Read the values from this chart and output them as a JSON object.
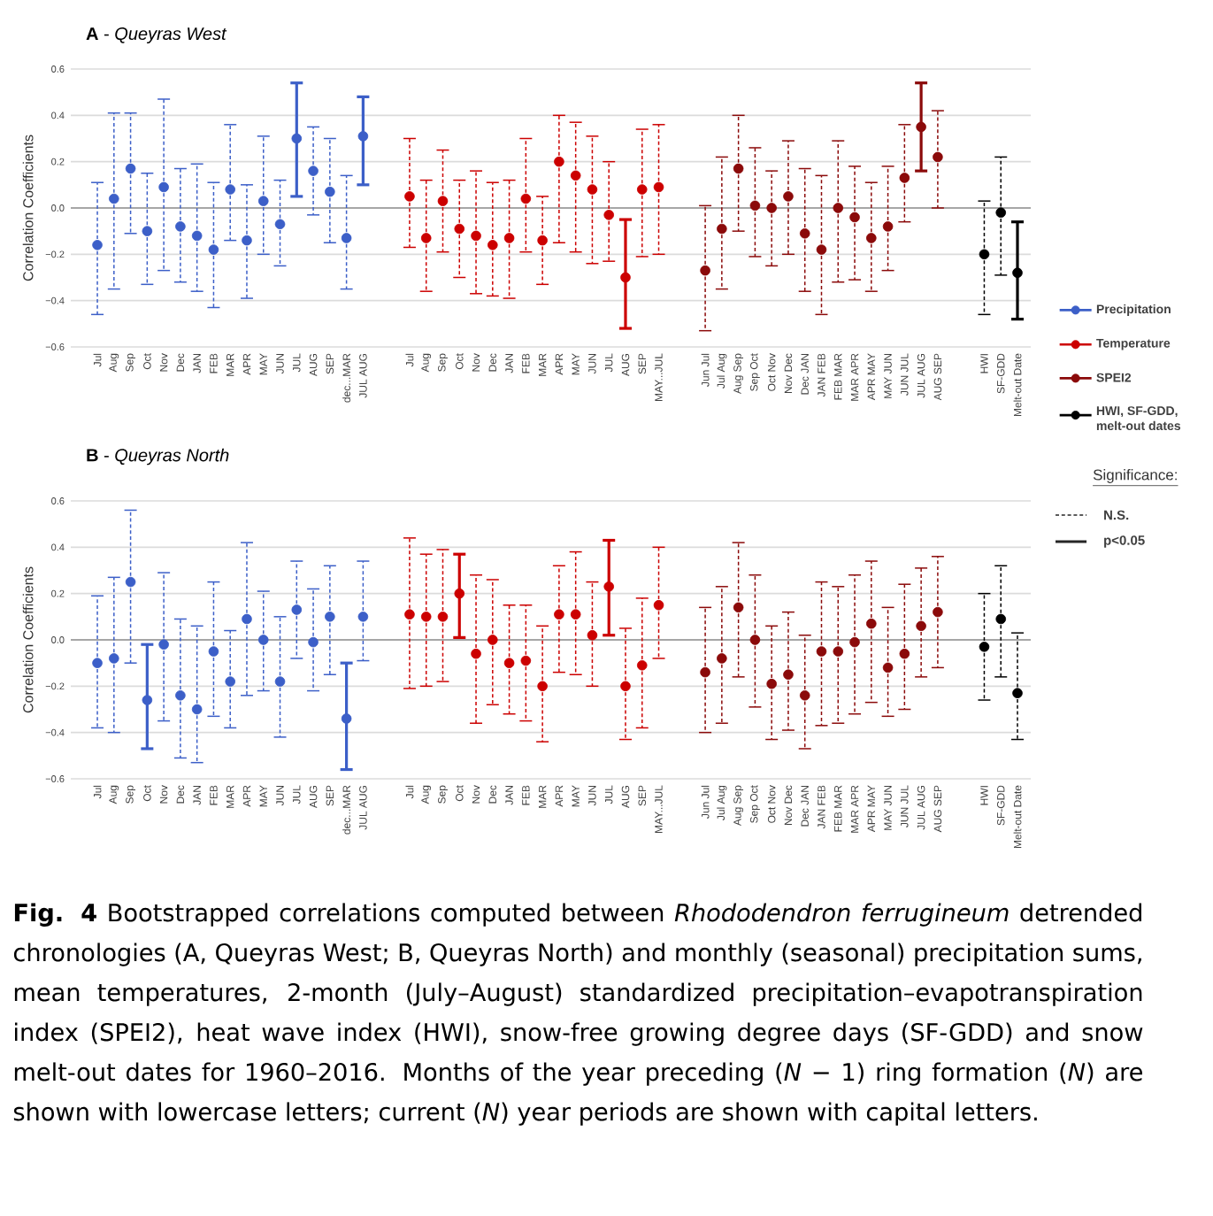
{
  "chart_data": [
    {
      "type": "scatter",
      "title": "**A** - *Queyras West*",
      "ylabel": "Correlation Coefficients",
      "categories": [
        "Jul",
        "Aug",
        "Sep",
        "Oct",
        "Nov",
        "Dec",
        "JAN",
        "FEB",
        "MAR",
        "APR",
        "MAY",
        "JUN",
        "JUL",
        "AUG",
        "SEP",
        "dec...MAR",
        "JUL AUG",
        "Jul",
        "Aug",
        "Sep",
        "Oct",
        "Nov",
        "Dec",
        "JAN",
        "FEB",
        "MAR",
        "APR",
        "MAY",
        "JUN",
        "JUL",
        "AUG",
        "SEP",
        "MAY...JUL",
        "Jun Jul",
        "Jul Aug",
        "Aug Sep",
        "Sep Oct",
        "Oct Nov",
        "Nov Dec",
        "Dec JAN",
        "JAN FEB",
        "FEB MAR",
        "MAR APR",
        "APR MAY",
        "MAY JUN",
        "JUN JUL",
        "JUL AUG",
        "AUG SEP",
        "HWI",
        "SF-GDD",
        "Melt-out Date"
      ],
      "ylim": [
        -0.6,
        0.6
      ],
      "yticks": [
        {
          "value": -0.6,
          "label": "−0.6"
        },
        {
          "value": -0.4,
          "label": "−0.4"
        },
        {
          "value": -0.2,
          "label": "−0.2"
        },
        {
          "value": 0,
          "label": "0.0"
        },
        0.2,
        0.4,
        0.6
      ],
      "grid": "y",
      "legend": "right",
      "marker": "circle",
      "ref_lines": [
        {
          "axis": "y",
          "value": 0,
          "color": "#a6a6a6"
        }
      ],
      "annotations": [
        "Significance:",
        "N.S.",
        "p<0.05"
      ],
      "series": [
        {
          "color": "#3c5fc8",
          "line_style": "dashed",
          "values": [
            -0.16,
            0.04,
            0.17,
            -0.1,
            0.09,
            -0.08,
            -0.12,
            -0.18,
            0.08,
            -0.14,
            0.03,
            -0.07,
            null,
            0.16,
            0.07,
            -0.13,
            null,
            null,
            null,
            null,
            null,
            null,
            null,
            null,
            null,
            null,
            null,
            null,
            null,
            null,
            null,
            null,
            null,
            null,
            null,
            null,
            null,
            null,
            null,
            null,
            null,
            null,
            null,
            null,
            null,
            null,
            null,
            null,
            null,
            null,
            null
          ],
          "errors": [
            [
              -0.46,
              0.11
            ],
            [
              -0.35,
              0.41
            ],
            [
              -0.11,
              0.41
            ],
            [
              -0.33,
              0.15
            ],
            [
              -0.27,
              0.47
            ],
            [
              -0.32,
              0.17
            ],
            [
              -0.36,
              0.19
            ],
            [
              -0.43,
              0.11
            ],
            [
              -0.14,
              0.36
            ],
            [
              -0.39,
              0.1
            ],
            [
              -0.2,
              0.31
            ],
            [
              -0.25,
              0.12
            ],
            null,
            [
              -0.03,
              0.35
            ],
            [
              -0.15,
              0.3
            ],
            [
              -0.35,
              0.14
            ],
            null,
            null,
            null,
            null,
            null,
            null,
            null,
            null,
            null,
            null,
            null,
            null,
            null,
            null,
            null,
            null,
            null,
            null,
            null,
            null,
            null,
            null,
            null,
            null,
            null,
            null,
            null,
            null,
            null,
            null,
            null,
            null,
            null,
            null,
            null
          ]
        },
        {
          "name": "Precipitation",
          "color": "#3c5fc8",
          "line_style": "solid",
          "values": [
            null,
            null,
            null,
            null,
            null,
            null,
            null,
            null,
            null,
            null,
            null,
            null,
            0.3,
            null,
            null,
            null,
            0.31,
            null,
            null,
            null,
            null,
            null,
            null,
            null,
            null,
            null,
            null,
            null,
            null,
            null,
            null,
            null,
            null,
            null,
            null,
            null,
            null,
            null,
            null,
            null,
            null,
            null,
            null,
            null,
            null,
            null,
            null,
            null,
            null,
            null,
            null
          ],
          "errors": [
            null,
            null,
            null,
            null,
            null,
            null,
            null,
            null,
            null,
            null,
            null,
            null,
            [
              0.05,
              0.54
            ],
            null,
            null,
            null,
            [
              0.1,
              0.48
            ],
            null,
            null,
            null,
            null,
            null,
            null,
            null,
            null,
            null,
            null,
            null,
            null,
            null,
            null,
            null,
            null,
            null,
            null,
            null,
            null,
            null,
            null,
            null,
            null,
            null,
            null,
            null,
            null,
            null,
            null,
            null,
            null,
            null,
            null
          ]
        },
        {
          "color": "#cc0000",
          "line_style": "dashed",
          "values": [
            null,
            null,
            null,
            null,
            null,
            null,
            null,
            null,
            null,
            null,
            null,
            null,
            null,
            null,
            null,
            null,
            null,
            0.05,
            -0.13,
            0.03,
            -0.09,
            -0.12,
            -0.16,
            -0.13,
            0.04,
            -0.14,
            0.2,
            0.14,
            0.08,
            -0.03,
            null,
            0.08,
            0.09,
            null,
            null,
            null,
            null,
            null,
            null,
            null,
            null,
            null,
            null,
            null,
            null,
            null,
            null,
            null,
            null,
            null,
            null
          ],
          "errors": [
            null,
            null,
            null,
            null,
            null,
            null,
            null,
            null,
            null,
            null,
            null,
            null,
            null,
            null,
            null,
            null,
            null,
            [
              -0.17,
              0.3
            ],
            [
              -0.36,
              0.12
            ],
            [
              -0.19,
              0.25
            ],
            [
              -0.3,
              0.12
            ],
            [
              -0.37,
              0.16
            ],
            [
              -0.38,
              0.11
            ],
            [
              -0.39,
              0.12
            ],
            [
              -0.19,
              0.3
            ],
            [
              -0.33,
              0.05
            ],
            [
              -0.15,
              0.4
            ],
            [
              -0.19,
              0.37
            ],
            [
              -0.24,
              0.31
            ],
            [
              -0.23,
              0.2
            ],
            null,
            [
              -0.21,
              0.34
            ],
            [
              -0.2,
              0.36
            ],
            null,
            null,
            null,
            null,
            null,
            null,
            null,
            null,
            null,
            null,
            null,
            null,
            null,
            null,
            null,
            null,
            null,
            null
          ]
        },
        {
          "name": "Temperature",
          "color": "#cc0000",
          "line_style": "solid",
          "values": [
            null,
            null,
            null,
            null,
            null,
            null,
            null,
            null,
            null,
            null,
            null,
            null,
            null,
            null,
            null,
            null,
            null,
            null,
            null,
            null,
            null,
            null,
            null,
            null,
            null,
            null,
            null,
            null,
            null,
            null,
            -0.3,
            null,
            null,
            null,
            null,
            null,
            null,
            null,
            null,
            null,
            null,
            null,
            null,
            null,
            null,
            null,
            null,
            null,
            null,
            null,
            null
          ],
          "errors": [
            null,
            null,
            null,
            null,
            null,
            null,
            null,
            null,
            null,
            null,
            null,
            null,
            null,
            null,
            null,
            null,
            null,
            null,
            null,
            null,
            null,
            null,
            null,
            null,
            null,
            null,
            null,
            null,
            null,
            null,
            [
              -0.52,
              -0.05
            ],
            null,
            null,
            null,
            null,
            null,
            null,
            null,
            null,
            null,
            null,
            null,
            null,
            null,
            null,
            null,
            null,
            null,
            null,
            null,
            null
          ]
        },
        {
          "color": "#8b0a0a",
          "line_style": "dashed",
          "values": [
            null,
            null,
            null,
            null,
            null,
            null,
            null,
            null,
            null,
            null,
            null,
            null,
            null,
            null,
            null,
            null,
            null,
            null,
            null,
            null,
            null,
            null,
            null,
            null,
            null,
            null,
            null,
            null,
            null,
            null,
            null,
            null,
            null,
            -0.27,
            -0.09,
            0.17,
            0.01,
            0.0,
            0.05,
            -0.11,
            -0.18,
            0.0,
            -0.04,
            -0.13,
            -0.08,
            0.13,
            null,
            0.22,
            null,
            null,
            null
          ],
          "errors": [
            null,
            null,
            null,
            null,
            null,
            null,
            null,
            null,
            null,
            null,
            null,
            null,
            null,
            null,
            null,
            null,
            null,
            null,
            null,
            null,
            null,
            null,
            null,
            null,
            null,
            null,
            null,
            null,
            null,
            null,
            null,
            null,
            null,
            [
              -0.53,
              0.01
            ],
            [
              -0.35,
              0.22
            ],
            [
              -0.1,
              0.4
            ],
            [
              -0.21,
              0.26
            ],
            [
              -0.25,
              0.16
            ],
            [
              -0.2,
              0.29
            ],
            [
              -0.36,
              0.17
            ],
            [
              -0.46,
              0.14
            ],
            [
              -0.32,
              0.29
            ],
            [
              -0.31,
              0.18
            ],
            [
              -0.36,
              0.11
            ],
            [
              -0.27,
              0.18
            ],
            [
              -0.06,
              0.36
            ],
            null,
            [
              0.0,
              0.42
            ],
            null,
            null,
            null
          ]
        },
        {
          "name": "SPEI2",
          "color": "#8b0a0a",
          "line_style": "solid",
          "values": [
            null,
            null,
            null,
            null,
            null,
            null,
            null,
            null,
            null,
            null,
            null,
            null,
            null,
            null,
            null,
            null,
            null,
            null,
            null,
            null,
            null,
            null,
            null,
            null,
            null,
            null,
            null,
            null,
            null,
            null,
            null,
            null,
            null,
            null,
            null,
            null,
            null,
            null,
            null,
            null,
            null,
            null,
            null,
            null,
            null,
            null,
            0.35,
            null,
            null,
            null,
            null
          ],
          "errors": [
            null,
            null,
            null,
            null,
            null,
            null,
            null,
            null,
            null,
            null,
            null,
            null,
            null,
            null,
            null,
            null,
            null,
            null,
            null,
            null,
            null,
            null,
            null,
            null,
            null,
            null,
            null,
            null,
            null,
            null,
            null,
            null,
            null,
            null,
            null,
            null,
            null,
            null,
            null,
            null,
            null,
            null,
            null,
            null,
            null,
            null,
            [
              0.16,
              0.54
            ],
            null,
            null,
            null,
            null
          ]
        },
        {
          "color": "#000000",
          "line_style": "dashed",
          "values": [
            null,
            null,
            null,
            null,
            null,
            null,
            null,
            null,
            null,
            null,
            null,
            null,
            null,
            null,
            null,
            null,
            null,
            null,
            null,
            null,
            null,
            null,
            null,
            null,
            null,
            null,
            null,
            null,
            null,
            null,
            null,
            null,
            null,
            null,
            null,
            null,
            null,
            null,
            null,
            null,
            null,
            null,
            null,
            null,
            null,
            null,
            null,
            null,
            -0.2,
            -0.02,
            null
          ],
          "errors": [
            null,
            null,
            null,
            null,
            null,
            null,
            null,
            null,
            null,
            null,
            null,
            null,
            null,
            null,
            null,
            null,
            null,
            null,
            null,
            null,
            null,
            null,
            null,
            null,
            null,
            null,
            null,
            null,
            null,
            null,
            null,
            null,
            null,
            null,
            null,
            null,
            null,
            null,
            null,
            null,
            null,
            null,
            null,
            null,
            null,
            null,
            null,
            null,
            [
              -0.46,
              0.03
            ],
            [
              -0.29,
              0.22
            ],
            null
          ]
        },
        {
          "name": "HWI, SF-GDD, melt-out dates",
          "color": "#000000",
          "line_style": "solid",
          "values": [
            null,
            null,
            null,
            null,
            null,
            null,
            null,
            null,
            null,
            null,
            null,
            null,
            null,
            null,
            null,
            null,
            null,
            null,
            null,
            null,
            null,
            null,
            null,
            null,
            null,
            null,
            null,
            null,
            null,
            null,
            null,
            null,
            null,
            null,
            null,
            null,
            null,
            null,
            null,
            null,
            null,
            null,
            null,
            null,
            null,
            null,
            null,
            null,
            null,
            null,
            -0.28
          ],
          "errors": [
            null,
            null,
            null,
            null,
            null,
            null,
            null,
            null,
            null,
            null,
            null,
            null,
            null,
            null,
            null,
            null,
            null,
            null,
            null,
            null,
            null,
            null,
            null,
            null,
            null,
            null,
            null,
            null,
            null,
            null,
            null,
            null,
            null,
            null,
            null,
            null,
            null,
            null,
            null,
            null,
            null,
            null,
            null,
            null,
            null,
            null,
            null,
            null,
            null,
            null,
            [
              -0.48,
              -0.06
            ]
          ]
        }
      ]
    },
    {
      "type": "scatter",
      "title": "**B** - *Queyras North*",
      "ylabel": "Correlation Coefficients",
      "categories": [
        "Jul",
        "Aug",
        "Sep",
        "Oct",
        "Nov",
        "Dec",
        "JAN",
        "FEB",
        "MAR",
        "APR",
        "MAY",
        "JUN",
        "JUL",
        "AUG",
        "SEP",
        "dec...MAR",
        "JUL AUG",
        "Jul",
        "Aug",
        "Sep",
        "Oct",
        "Nov",
        "Dec",
        "JAN",
        "FEB",
        "MAR",
        "APR",
        "MAY",
        "JUN",
        "JUL",
        "AUG",
        "SEP",
        "MAY...JUL",
        "Jun Jul",
        "Jul Aug",
        "Aug Sep",
        "Sep Oct",
        "Oct Nov",
        "Nov Dec",
        "Dec JAN",
        "JAN FEB",
        "FEB MAR",
        "MAR APR",
        "APR MAY",
        "MAY JUN",
        "JUN JUL",
        "JUL AUG",
        "AUG SEP",
        "HWI",
        "SF-GDD",
        "Melt-out Date"
      ],
      "ylim": [
        -0.6,
        0.6
      ],
      "yticks": [
        {
          "value": -0.6,
          "label": "−0.6"
        },
        {
          "value": -0.4,
          "label": "−0.4"
        },
        {
          "value": -0.2,
          "label": "−0.2"
        },
        {
          "value": 0,
          "label": "0.0"
        },
        0.2,
        0.4,
        0.6
      ],
      "grid": "y",
      "marker": "circle",
      "ref_lines": [
        {
          "axis": "y",
          "value": 0,
          "color": "#a6a6a6"
        }
      ],
      "annotations": [
        "**Fig. 4** Bootstrapped correlations computed between *Rhododendron ferrugineum* detrended chronologies (A, Queyras West; B, Queyras North) and monthly (seasonal) precipitation sums, mean temperatures, 2-month (July–August) standardized precipitation–evapotranspiration index (SPEI2), heat wave index (HWI), snow-free growing degree days (SF-GDD) and snow melt-out dates for 1960–2016. Months of the year preceding (*N* − 1) ring formation (*N*) are shown with lowercase letters; current (*N*) year periods are shown with capital letters."
      ],
      "series": [
        {
          "color": "#3c5fc8",
          "line_style": "dashed",
          "values": [
            -0.1,
            -0.08,
            0.25,
            null,
            -0.02,
            -0.24,
            -0.3,
            -0.05,
            -0.18,
            0.09,
            0.0,
            -0.18,
            0.13,
            -0.01,
            0.1,
            null,
            0.1,
            null,
            null,
            null,
            null,
            null,
            null,
            null,
            null,
            null,
            null,
            null,
            null,
            null,
            null,
            null,
            null,
            null,
            null,
            null,
            null,
            null,
            null,
            null,
            null,
            null,
            null,
            null,
            null,
            null,
            null,
            null,
            null,
            null,
            null
          ],
          "errors": [
            [
              -0.38,
              0.19
            ],
            [
              -0.4,
              0.27
            ],
            [
              -0.1,
              0.56
            ],
            null,
            [
              -0.35,
              0.29
            ],
            [
              -0.51,
              0.09
            ],
            [
              -0.53,
              0.06
            ],
            [
              -0.33,
              0.25
            ],
            [
              -0.38,
              0.04
            ],
            [
              -0.24,
              0.42
            ],
            [
              -0.22,
              0.21
            ],
            [
              -0.42,
              0.1
            ],
            [
              -0.08,
              0.34
            ],
            [
              -0.22,
              0.22
            ],
            [
              -0.15,
              0.32
            ],
            null,
            [
              -0.09,
              0.34
            ],
            null,
            null,
            null,
            null,
            null,
            null,
            null,
            null,
            null,
            null,
            null,
            null,
            null,
            null,
            null,
            null,
            null,
            null,
            null,
            null,
            null,
            null,
            null,
            null,
            null,
            null,
            null,
            null,
            null,
            null,
            null,
            null,
            null,
            null
          ]
        },
        {
          "color": "#3c5fc8",
          "line_style": "solid",
          "values": [
            null,
            null,
            null,
            -0.26,
            null,
            null,
            null,
            null,
            null,
            null,
            null,
            null,
            null,
            null,
            null,
            -0.34,
            null,
            null,
            null,
            null,
            null,
            null,
            null,
            null,
            null,
            null,
            null,
            null,
            null,
            null,
            null,
            null,
            null,
            null,
            null,
            null,
            null,
            null,
            null,
            null,
            null,
            null,
            null,
            null,
            null,
            null,
            null,
            null,
            null,
            null,
            null
          ],
          "errors": [
            null,
            null,
            null,
            [
              -0.47,
              -0.02
            ],
            null,
            null,
            null,
            null,
            null,
            null,
            null,
            null,
            null,
            null,
            null,
            [
              -0.56,
              -0.1
            ],
            null,
            null,
            null,
            null,
            null,
            null,
            null,
            null,
            null,
            null,
            null,
            null,
            null,
            null,
            null,
            null,
            null,
            null,
            null,
            null,
            null,
            null,
            null,
            null,
            null,
            null,
            null,
            null,
            null,
            null,
            null,
            null,
            null,
            null,
            null
          ]
        },
        {
          "color": "#cc0000",
          "line_style": "dashed",
          "values": [
            null,
            null,
            null,
            null,
            null,
            null,
            null,
            null,
            null,
            null,
            null,
            null,
            null,
            null,
            null,
            null,
            null,
            0.11,
            0.1,
            0.1,
            null,
            -0.06,
            0.0,
            -0.1,
            -0.09,
            -0.2,
            0.11,
            0.11,
            0.02,
            null,
            -0.2,
            -0.11,
            0.15,
            null,
            null,
            null,
            null,
            null,
            null,
            null,
            null,
            null,
            null,
            null,
            null,
            null,
            null,
            null,
            null,
            null,
            null
          ],
          "errors": [
            null,
            null,
            null,
            null,
            null,
            null,
            null,
            null,
            null,
            null,
            null,
            null,
            null,
            null,
            null,
            null,
            null,
            [
              -0.21,
              0.44
            ],
            [
              -0.2,
              0.37
            ],
            [
              -0.18,
              0.39
            ],
            null,
            [
              -0.36,
              0.28
            ],
            [
              -0.28,
              0.26
            ],
            [
              -0.32,
              0.15
            ],
            [
              -0.35,
              0.15
            ],
            [
              -0.44,
              0.06
            ],
            [
              -0.14,
              0.32
            ],
            [
              -0.15,
              0.38
            ],
            [
              -0.2,
              0.25
            ],
            null,
            [
              -0.43,
              0.05
            ],
            [
              -0.38,
              0.18
            ],
            [
              -0.08,
              0.4
            ],
            null,
            null,
            null,
            null,
            null,
            null,
            null,
            null,
            null,
            null,
            null,
            null,
            null,
            null,
            null,
            null,
            null,
            null
          ]
        },
        {
          "color": "#cc0000",
          "line_style": "solid",
          "values": [
            null,
            null,
            null,
            null,
            null,
            null,
            null,
            null,
            null,
            null,
            null,
            null,
            null,
            null,
            null,
            null,
            null,
            null,
            null,
            null,
            0.2,
            null,
            null,
            null,
            null,
            null,
            null,
            null,
            null,
            0.23,
            null,
            null,
            null,
            null,
            null,
            null,
            null,
            null,
            null,
            null,
            null,
            null,
            null,
            null,
            null,
            null,
            null,
            null,
            null,
            null,
            null
          ],
          "errors": [
            null,
            null,
            null,
            null,
            null,
            null,
            null,
            null,
            null,
            null,
            null,
            null,
            null,
            null,
            null,
            null,
            null,
            null,
            null,
            null,
            [
              0.01,
              0.37
            ],
            null,
            null,
            null,
            null,
            null,
            null,
            null,
            null,
            [
              0.02,
              0.43
            ],
            null,
            null,
            null,
            null,
            null,
            null,
            null,
            null,
            null,
            null,
            null,
            null,
            null,
            null,
            null,
            null,
            null,
            null,
            null,
            null,
            null
          ]
        },
        {
          "color": "#8b0a0a",
          "line_style": "dashed",
          "values": [
            null,
            null,
            null,
            null,
            null,
            null,
            null,
            null,
            null,
            null,
            null,
            null,
            null,
            null,
            null,
            null,
            null,
            null,
            null,
            null,
            null,
            null,
            null,
            null,
            null,
            null,
            null,
            null,
            null,
            null,
            null,
            null,
            null,
            -0.14,
            -0.08,
            0.14,
            0.0,
            -0.19,
            -0.15,
            -0.24,
            -0.05,
            -0.05,
            -0.01,
            0.07,
            -0.12,
            -0.06,
            0.06,
            0.12,
            null,
            null,
            null
          ],
          "errors": [
            null,
            null,
            null,
            null,
            null,
            null,
            null,
            null,
            null,
            null,
            null,
            null,
            null,
            null,
            null,
            null,
            null,
            null,
            null,
            null,
            null,
            null,
            null,
            null,
            null,
            null,
            null,
            null,
            null,
            null,
            null,
            null,
            null,
            [
              -0.4,
              0.14
            ],
            [
              -0.36,
              0.23
            ],
            [
              -0.16,
              0.42
            ],
            [
              -0.29,
              0.28
            ],
            [
              -0.43,
              0.06
            ],
            [
              -0.39,
              0.12
            ],
            [
              -0.47,
              0.02
            ],
            [
              -0.37,
              0.25
            ],
            [
              -0.36,
              0.23
            ],
            [
              -0.32,
              0.28
            ],
            [
              -0.27,
              0.34
            ],
            [
              -0.33,
              0.14
            ],
            [
              -0.3,
              0.24
            ],
            [
              -0.16,
              0.31
            ],
            [
              -0.12,
              0.36
            ],
            null,
            null,
            null
          ]
        },
        {
          "color": "#000000",
          "line_style": "dashed",
          "values": [
            null,
            null,
            null,
            null,
            null,
            null,
            null,
            null,
            null,
            null,
            null,
            null,
            null,
            null,
            null,
            null,
            null,
            null,
            null,
            null,
            null,
            null,
            null,
            null,
            null,
            null,
            null,
            null,
            null,
            null,
            null,
            null,
            null,
            null,
            null,
            null,
            null,
            null,
            null,
            null,
            null,
            null,
            null,
            null,
            null,
            null,
            null,
            null,
            -0.03,
            0.09,
            -0.23
          ],
          "errors": [
            null,
            null,
            null,
            null,
            null,
            null,
            null,
            null,
            null,
            null,
            null,
            null,
            null,
            null,
            null,
            null,
            null,
            null,
            null,
            null,
            null,
            null,
            null,
            null,
            null,
            null,
            null,
            null,
            null,
            null,
            null,
            null,
            null,
            null,
            null,
            null,
            null,
            null,
            null,
            null,
            null,
            null,
            null,
            null,
            null,
            null,
            null,
            null,
            [
              -0.26,
              0.2
            ],
            [
              -0.16,
              0.32
            ],
            [
              -0.43,
              0.03
            ]
          ]
        }
      ]
    }
  ]
}
